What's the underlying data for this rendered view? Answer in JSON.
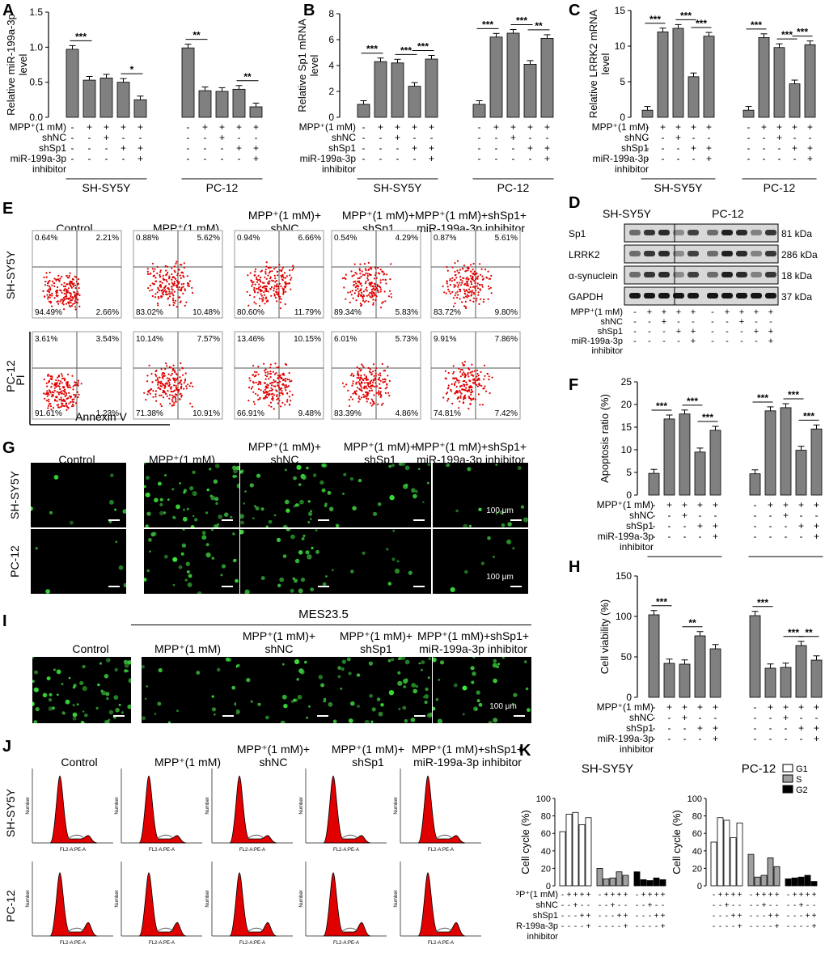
{
  "labels": {
    "A": "A",
    "B": "B",
    "C": "C",
    "D": "D",
    "E": "E",
    "F": "F",
    "G": "G",
    "H": "H",
    "I": "I",
    "J": "J",
    "K": "K"
  },
  "row_labels": {
    "mpp": "MPP⁺(1 mM)",
    "shnc": "shNC",
    "shsp1": "shSp1",
    "mir": "miR-199a-3p",
    "inhibitor": "inhibitor"
  },
  "signs": [
    "-",
    "+",
    "+",
    "+",
    "+"
  ],
  "sign_rows": {
    "mpp": [
      "-",
      "+",
      "+",
      "+",
      "+"
    ],
    "shnc": [
      "-",
      "-",
      "+",
      "-",
      "-"
    ],
    "shsp1": [
      "-",
      "-",
      "-",
      "+",
      "+"
    ],
    "mir": [
      "-",
      "-",
      "-",
      "-",
      "+"
    ]
  },
  "cell_lines": [
    "SH-SY5Y",
    "PC-12"
  ],
  "columns": [
    "Control",
    "MPP⁺(1 mM)",
    "MPP⁺(1 mM)+\nshNC",
    "MPP⁺(1 mM)+\nshSp1",
    "MPP⁺(1 mM)+shSp1+\nmiR-199a-3p inhibitor"
  ],
  "panel_A": {
    "chart_data": {
      "type": "bar",
      "ylabel": "Relative miR-199a-3p\nlevel",
      "ylim": [
        0,
        1.5
      ],
      "yticks": [
        "0.0",
        "0.5",
        "1.0",
        "1.5"
      ],
      "series": [
        {
          "values": [
            0.97,
            0.53,
            0.56,
            0.5,
            0.25
          ]
        },
        {
          "values": [
            0.99,
            0.38,
            0.37,
            0.4,
            0.15
          ]
        }
      ],
      "sig": [
        {
          "g": 0,
          "a": 0,
          "b": 1,
          "t": "***"
        },
        {
          "g": 0,
          "a": 3,
          "b": 4,
          "t": "*"
        },
        {
          "g": 1,
          "a": 0,
          "b": 1,
          "t": "**"
        },
        {
          "g": 1,
          "a": 3,
          "b": 4,
          "t": "**"
        }
      ]
    }
  },
  "panel_B": {
    "chart_data": {
      "type": "bar",
      "ylabel": "Relative Sp1 mRNA\nlevel",
      "ylim": [
        0,
        8
      ],
      "yticks": [
        "0",
        "2",
        "4",
        "6",
        "8"
      ],
      "series": [
        {
          "values": [
            1,
            4.3,
            4.2,
            2.4,
            4.5
          ]
        },
        {
          "values": [
            1,
            6.2,
            6.5,
            4.1,
            6.1
          ]
        }
      ],
      "sig": [
        {
          "g": 0,
          "a": 0,
          "b": 1,
          "t": "***"
        },
        {
          "g": 0,
          "a": 2,
          "b": 3,
          "t": "***"
        },
        {
          "g": 0,
          "a": 3,
          "b": 4,
          "t": "***"
        },
        {
          "g": 1,
          "a": 0,
          "b": 1,
          "t": "***"
        },
        {
          "g": 1,
          "a": 2,
          "b": 3,
          "t": "***"
        },
        {
          "g": 1,
          "a": 3,
          "b": 4,
          "t": "**"
        }
      ]
    }
  },
  "panel_C": {
    "chart_data": {
      "type": "bar",
      "ylabel": "Relative LRRK2 mRNA\nlevel",
      "ylim": [
        0,
        15
      ],
      "yticks": [
        "0",
        "5",
        "10",
        "15"
      ],
      "series": [
        {
          "values": [
            1,
            12,
            12.5,
            5.7,
            11.4
          ]
        },
        {
          "values": [
            1,
            11.2,
            9.8,
            4.7,
            10.2
          ]
        }
      ],
      "sig": [
        {
          "g": 0,
          "a": 0,
          "b": 1,
          "t": "***"
        },
        {
          "g": 0,
          "a": 2,
          "b": 3,
          "t": "***"
        },
        {
          "g": 0,
          "a": 3,
          "b": 4,
          "t": "***"
        },
        {
          "g": 1,
          "a": 0,
          "b": 1,
          "t": "***"
        },
        {
          "g": 1,
          "a": 2,
          "b": 3,
          "t": "***"
        },
        {
          "g": 1,
          "a": 3,
          "b": 4,
          "t": "***"
        }
      ]
    }
  },
  "panel_F": {
    "chart_data": {
      "type": "bar",
      "ylabel": "Apoptosis ratio (%)",
      "ylim": [
        0,
        25
      ],
      "yticks": [
        "0",
        "5",
        "10",
        "15",
        "20",
        "25"
      ],
      "series": [
        {
          "values": [
            4.8,
            16.8,
            17.9,
            9.5,
            14.3
          ]
        },
        {
          "values": [
            4.7,
            18.6,
            19.3,
            9.9,
            14.6
          ]
        }
      ],
      "sig": [
        {
          "g": 0,
          "a": 0,
          "b": 1,
          "t": "***"
        },
        {
          "g": 0,
          "a": 2,
          "b": 3,
          "t": "***"
        },
        {
          "g": 0,
          "a": 3,
          "b": 4,
          "t": "***"
        },
        {
          "g": 1,
          "a": 0,
          "b": 1,
          "t": "***"
        },
        {
          "g": 1,
          "a": 2,
          "b": 3,
          "t": "***"
        },
        {
          "g": 1,
          "a": 3,
          "b": 4,
          "t": "***"
        }
      ]
    }
  },
  "panel_H": {
    "chart_data": {
      "type": "bar",
      "ylabel": "Cell viability (%)",
      "ylim": [
        0,
        150
      ],
      "yticks": [
        "0",
        "50",
        "100",
        "150"
      ],
      "series": [
        {
          "values": [
            102,
            42,
            41,
            76,
            60
          ]
        },
        {
          "values": [
            101,
            36,
            37,
            64,
            46
          ]
        }
      ],
      "sig": [
        {
          "g": 0,
          "a": 0,
          "b": 1,
          "t": "***"
        },
        {
          "g": 0,
          "a": 2,
          "b": 3,
          "t": "**"
        },
        {
          "g": 1,
          "a": 0,
          "b": 1,
          "t": "***"
        },
        {
          "g": 1,
          "a": 2,
          "b": 3,
          "t": "***"
        },
        {
          "g": 1,
          "a": 3,
          "b": 4,
          "t": "**"
        }
      ]
    }
  },
  "panel_D": {
    "proteins": [
      "Sp1",
      "LRRK2",
      "α-synuclein",
      "GAPDH"
    ],
    "kda": [
      "81 kDa",
      "286 kDa",
      "18 kDa",
      "37 kDa"
    ],
    "mpp_label": "MPP⁺(1 mM)"
  },
  "panel_E": {
    "axis_y": "PI",
    "axis_x": "Annexin V",
    "quadrants": [
      [
        [
          "0.64%",
          "2.21%",
          "94.49%",
          "2.66%"
        ],
        [
          "0.88%",
          "5.62%",
          "83.02%",
          "10.48%"
        ],
        [
          "0.94%",
          "6.66%",
          "80.60%",
          "11.79%"
        ],
        [
          "0.54%",
          "4.29%",
          "89.34%",
          "5.83%"
        ],
        [
          "0.87%",
          "5.61%",
          "83.72%",
          "9.80%"
        ]
      ],
      [
        [
          "3.61%",
          "3.54%",
          "91.61%",
          "1.23%"
        ],
        [
          "10.14%",
          "7.57%",
          "71.38%",
          "10.91%"
        ],
        [
          "13.46%",
          "10.15%",
          "66.91%",
          "9.48%"
        ],
        [
          "6.01%",
          "5.73%",
          "83.39%",
          "4.86%"
        ],
        [
          "9.91%",
          "7.86%",
          "74.81%",
          "7.42%"
        ]
      ]
    ]
  },
  "panel_G": {
    "scale": "100 μm",
    "brightness": [
      [
        0.1,
        0.6,
        0.5,
        0.25,
        0.15
      ],
      [
        0.05,
        0.35,
        0.3,
        0.1,
        0.08
      ]
    ]
  },
  "panel_I": {
    "title": "MES23.5",
    "scale": "100 μm",
    "brightness": [
      0.7,
      0.2,
      0.3,
      0.55,
      0.35
    ]
  },
  "panel_J": {
    "xlabel": "FL2-A:PE-A",
    "ylabel": "Number"
  },
  "panel_K": {
    "titles": [
      "SH-SY5Y",
      "PC-12"
    ],
    "ylabel": "Cell cycle (%)",
    "legend": [
      "G1",
      "S",
      "G2"
    ],
    "chart_data": [
      {
        "type": "bar",
        "title": "SH-SY5Y",
        "ylim": [
          0,
          100
        ],
        "yticks": [
          "0",
          "20",
          "40",
          "60",
          "80",
          "100"
        ],
        "series": [
          {
            "name": "G1",
            "values": [
              62,
              82,
              84,
              70,
              78
            ]
          },
          {
            "name": "S",
            "values": [
              20,
              8,
              9,
              16,
              12
            ]
          },
          {
            "name": "G2",
            "values": [
              16,
              7,
              6,
              9,
              7
            ]
          }
        ]
      },
      {
        "type": "bar",
        "title": "PC-12",
        "ylim": [
          0,
          100
        ],
        "yticks": [
          "0",
          "20",
          "40",
          "60",
          "80",
          "100"
        ],
        "series": [
          {
            "name": "G1",
            "values": [
              50,
              78,
              75,
              55,
              72
            ]
          },
          {
            "name": "S",
            "values": [
              36,
              10,
              12,
              32,
              22
            ]
          },
          {
            "name": "G2",
            "values": [
              8,
              9,
              10,
              12,
              5
            ]
          }
        ]
      }
    ]
  }
}
